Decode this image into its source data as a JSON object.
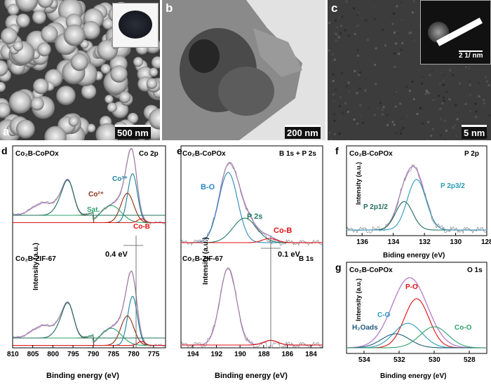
{
  "panels_top": {
    "a": {
      "label": "a",
      "scale": "500 nm"
    },
    "b": {
      "label": "b",
      "scale": "200 nm"
    },
    "c": {
      "label": "c",
      "scale": "5 nm",
      "inset_scale": "2 1/ nm"
    }
  },
  "panel_d": {
    "label": "d",
    "sample_top": "Co₂B-CoPOx",
    "sample_bottom": "Co₂B-ZIF-67",
    "region": "Co 2p",
    "shift": "0.4 eV",
    "peaks": {
      "co3": "Co³⁺",
      "co2": "Co²⁺",
      "sat": "Sat.",
      "cob": "Co-B"
    }
  },
  "panel_e": {
    "label": "e",
    "sample_top": "Co₂B-CoPOx",
    "sample_bottom": "Co₂B-ZIF-67",
    "region_top": "B 1s + P 2s",
    "region_bottom": "B 1s",
    "shift": "0.1 eV",
    "peaks": {
      "bo": "B-O",
      "p2s": "P 2s",
      "cob": "Co-B"
    }
  },
  "panel_f": {
    "label": "f",
    "sample": "Co₂B-CoPOx",
    "region": "P 2p",
    "peaks": {
      "p12": "P 2p1/2",
      "p32": "P 2p3/2"
    }
  },
  "panel_g": {
    "label": "g",
    "sample": "Co₂B-CoPOx",
    "region": "O 1s",
    "peaks": {
      "po": "P-O",
      "co": "C-O",
      "h2o": "H₂Oads",
      "coo": "Co-O"
    }
  },
  "chart_data": [
    {
      "type": "line",
      "panel": "d",
      "xlabel": "Binding energy (eV)",
      "ylabel": "Intensity (a.u.)",
      "x_ticks": [
        810,
        805,
        800,
        795,
        790,
        785,
        780,
        775
      ],
      "xlim": [
        810,
        772
      ]
    },
    {
      "type": "line",
      "panel": "e",
      "xlabel": "Binding energy (eV)",
      "ylabel": "Intensity (a.u.)",
      "x_ticks": [
        194,
        192,
        190,
        188,
        186,
        184
      ],
      "xlim": [
        195,
        183
      ]
    },
    {
      "type": "line",
      "panel": "f",
      "xlabel": "Biding energy (eV)",
      "ylabel": "Intensity (a.u.)",
      "x_ticks": [
        136,
        134,
        132,
        130,
        128
      ],
      "xlim": [
        137,
        128
      ]
    },
    {
      "type": "line",
      "panel": "g",
      "xlabel": "Binding energy (eV)",
      "ylabel": "Intensity (a.u.)",
      "x_ticks": [
        534,
        532,
        530,
        528
      ],
      "xlim": [
        535,
        527
      ]
    }
  ]
}
